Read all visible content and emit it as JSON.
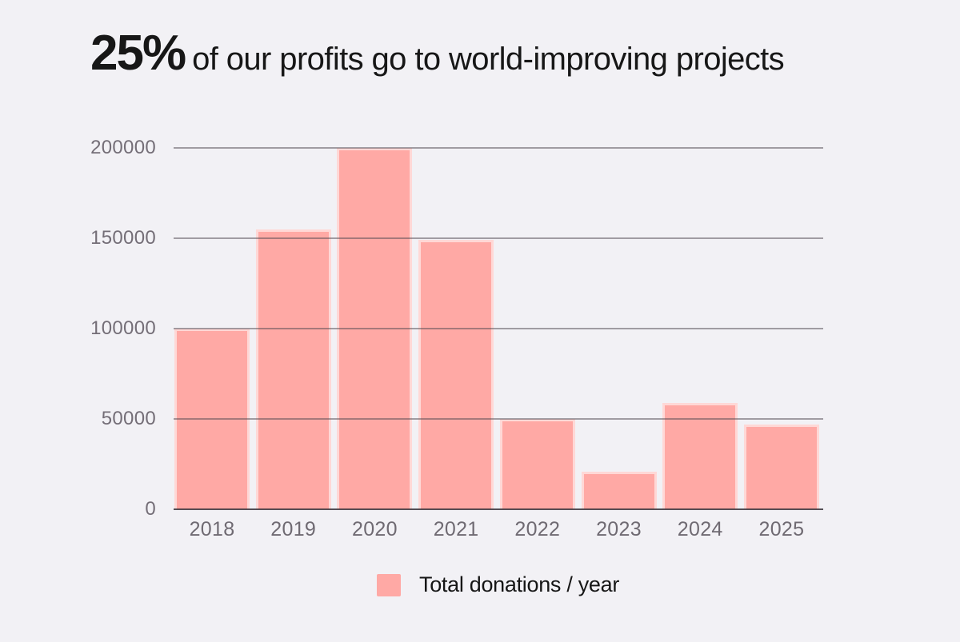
{
  "page": {
    "background_color": "#f2f1f5"
  },
  "title": {
    "highlight": "25%",
    "text": "of our profits go to world-improving projects"
  },
  "chart_data": {
    "type": "bar",
    "title": "25% of our profits go to world-improving projects",
    "categories": [
      "2018",
      "2019",
      "2020",
      "2021",
      "2022",
      "2023",
      "2024",
      "2025"
    ],
    "series": [
      {
        "name": "Total donations / year",
        "values": [
          100000,
          155000,
          200000,
          149000,
          50000,
          21000,
          59000,
          47000
        ]
      }
    ],
    "xlabel": "",
    "ylabel": "",
    "y_ticks": [
      0,
      50000,
      100000,
      150000,
      200000
    ],
    "ylim": [
      0,
      200000
    ],
    "grid": true,
    "legend_position": "bottom",
    "bar_color": "#ffa9a5",
    "grid_color": "#8b878d",
    "axis_label_color": "#746e77"
  },
  "legend": {
    "label": "Total donations / year",
    "swatch_color": "#ffa9a5"
  }
}
